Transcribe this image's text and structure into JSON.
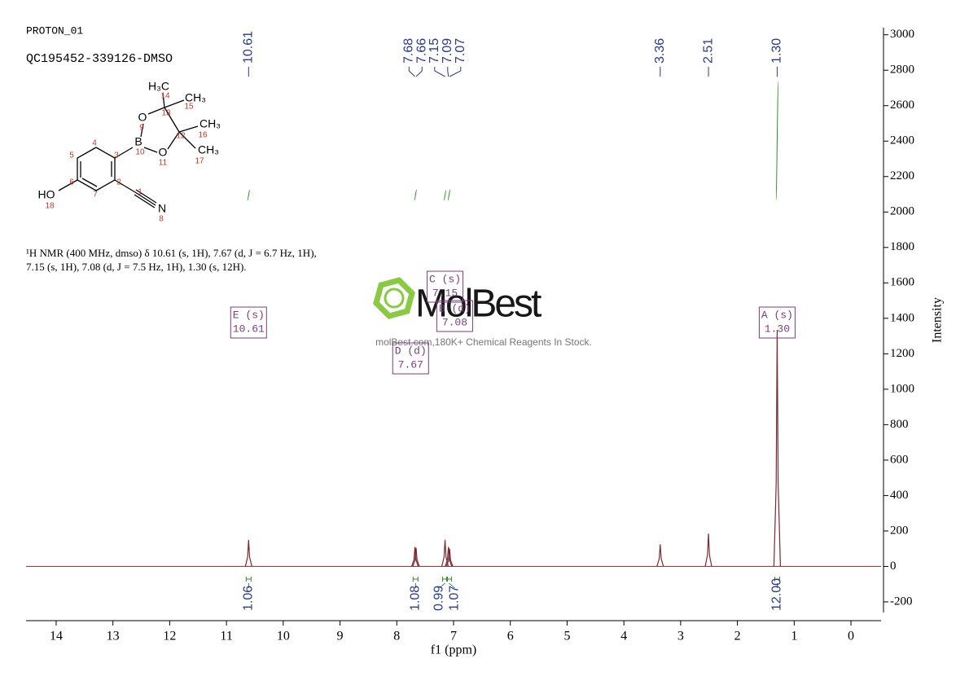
{
  "header": {
    "experiment": "PROTON_01",
    "sample": "QC195452-339126-DMSO"
  },
  "structure": {
    "atoms": [
      "H₃C",
      "CH₃",
      "CH₃",
      "CH₃",
      "O",
      "O",
      "B",
      "HO",
      "N"
    ],
    "numbers": [
      "14",
      "15",
      "13",
      "9",
      "16",
      "12",
      "10",
      "17",
      "11",
      "4",
      "3",
      "5",
      "6",
      "2",
      "7",
      "1",
      "18",
      "8"
    ]
  },
  "description": "¹H NMR (400 MHz, dmso) δ 10.61 (s, 1H), 7.67 (d, J = 6.7 Hz, 1H), 7.15 (s, 1H), 7.08 (d, J = 7.5 Hz, 1H), 1.30 (s, 12H).",
  "watermark": {
    "logo": "MolBest",
    "tagline": "molBest.com,180K+ Chemical Reagents In Stock."
  },
  "chart_data": {
    "type": "nmr",
    "x_label": "f1 (ppm)",
    "y_label": "Intensity",
    "xlim": [
      14.53,
      -0.53
    ],
    "xticks": [
      14,
      13,
      12,
      11,
      10,
      9,
      8,
      7,
      6,
      5,
      4,
      3,
      2,
      1,
      0
    ],
    "ylim": [
      -260,
      3040
    ],
    "yticks": [
      -200,
      0,
      200,
      400,
      600,
      800,
      1000,
      1200,
      1400,
      1600,
      1800,
      2000,
      2200,
      2400,
      2600,
      2800,
      3000
    ],
    "peaks": {
      "x": [
        10.61,
        7.68,
        7.66,
        7.15,
        7.09,
        7.07,
        3.36,
        2.51,
        1.3
      ],
      "values": [
        150,
        110,
        105,
        150,
        110,
        100,
        125,
        185,
        1335
      ],
      "color": "#7a2a33"
    },
    "peak_labels": [
      10.61,
      7.68,
      7.66,
      7.15,
      7.09,
      7.07,
      3.36,
      2.51,
      {
        "value": 1.3,
        "label": "1.30"
      }
    ],
    "integrals": {
      "x": [
        10.61,
        7.67,
        7.15,
        7.08,
        1.3
      ],
      "values": [
        1.06,
        1.08,
        0.99,
        1.07,
        12
      ],
      "value_labels": [
        "1.06",
        "1.08",
        "0.99",
        "1.07",
        "12.00"
      ],
      "color": "#2e8b2e"
    },
    "multiplets": [
      {
        "name": "E (s)",
        "shift": 10.61
      },
      {
        "name": "C (s)",
        "shift": 7.15
      },
      {
        "name": "B (d)",
        "shift": 7.08
      },
      {
        "name": "D (d)",
        "shift": 7.67
      },
      {
        "name": "A (s)",
        "shift": {
          "value": 1.3,
          "label": "1.30"
        }
      }
    ]
  }
}
